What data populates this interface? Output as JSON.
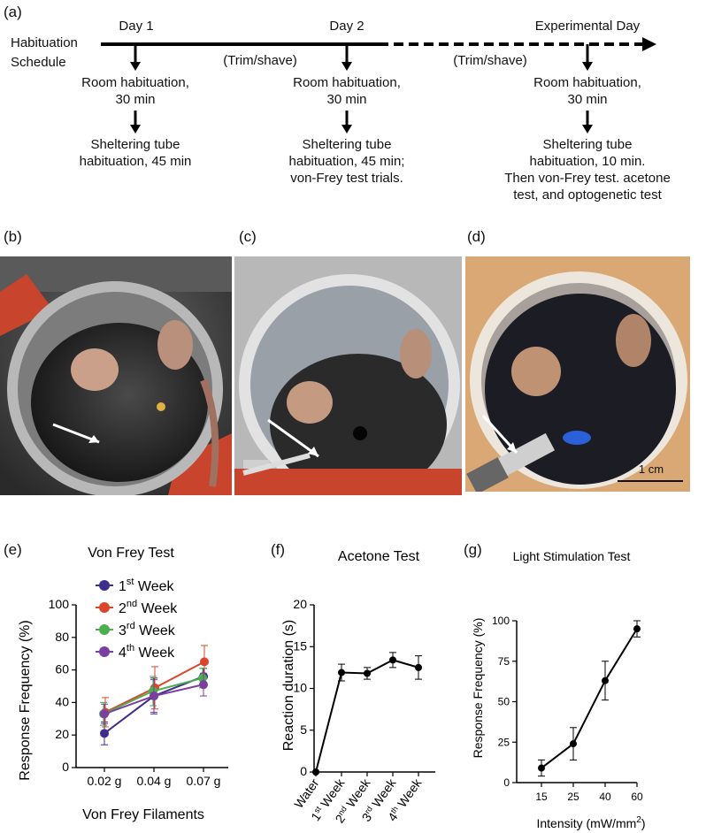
{
  "panels": {
    "a": "(a)",
    "b": "(b)",
    "c": "(c)",
    "d": "(d)",
    "e": "(e)",
    "f": "(f)",
    "g": "(g)"
  },
  "schedule": {
    "title_line1": "Habituation",
    "title_line2": "Schedule",
    "day1": {
      "label": "Day 1",
      "step1": [
        "Room habituation,",
        "30 min"
      ],
      "step2": [
        "Sheltering tube",
        "habituation, 45 min"
      ]
    },
    "trim1": "(Trim/shave)",
    "day2": {
      "label": "Day 2",
      "step1": [
        "Room habituation,",
        "30 min"
      ],
      "step2": [
        "Sheltering tube",
        "habituation, 45 min;",
        "von-Frey test trials."
      ]
    },
    "trim2": "(Trim/shave)",
    "exp": {
      "label": "Experimental Day",
      "step1": [
        "Room habituation,",
        "30 min"
      ],
      "step2": [
        "Sheltering tube",
        "habituation, 10 min.",
        "Then von-Frey test. acetone",
        "test, and optogenetic test"
      ]
    }
  },
  "photo_d_scale": "1 cm",
  "chart_data": [
    {
      "type": "line",
      "title": "Von Frey Test",
      "xlabel": "Von Frey Filaments",
      "ylabel": "Response Frequency (%)",
      "categories": [
        "0.02 g",
        "0.04 g",
        "0.07 g"
      ],
      "ylim": [
        0,
        100
      ],
      "yticks": [
        "0",
        "20",
        "40",
        "60",
        "80",
        "100"
      ],
      "series": [
        {
          "name": "1st Week",
          "base": "1",
          "sup": "st",
          "suffix": " Week",
          "color": "#3b2e8c",
          "values": [
            21,
            44,
            56
          ],
          "err": [
            7,
            11,
            5
          ]
        },
        {
          "name": "2nd Week",
          "base": "2",
          "sup": "nd",
          "suffix": " Week",
          "color": "#d9462b",
          "values": [
            34,
            49,
            65
          ],
          "err": [
            9,
            13,
            10
          ]
        },
        {
          "name": "3rd Week",
          "base": "3",
          "sup": "rd",
          "suffix": " Week",
          "color": "#4cae4f",
          "values": [
            33,
            47,
            55
          ],
          "err": [
            7,
            9,
            6
          ]
        },
        {
          "name": "4th Week",
          "base": "4",
          "sup": "th",
          "suffix": " Week",
          "color": "#7a3fa0",
          "values": [
            33,
            44,
            51
          ],
          "err": [
            6,
            10,
            7
          ]
        }
      ]
    },
    {
      "type": "line",
      "title": "Acetone Test",
      "xlabel": "",
      "ylabel": "Reaction duration (s)",
      "categories": [
        {
          "base": "Water",
          "sup": "",
          "suffix": ""
        },
        {
          "base": "1",
          "sup": "st",
          "suffix": " Week"
        },
        {
          "base": "2",
          "sup": "nd",
          "suffix": " Week"
        },
        {
          "base": "3",
          "sup": "rd",
          "suffix": " Week"
        },
        {
          "base": "4",
          "sup": "th",
          "suffix": " Week"
        }
      ],
      "ylim": [
        0,
        20
      ],
      "yticks": [
        "0",
        "5",
        "10",
        "15",
        "20"
      ],
      "series": [
        {
          "name": "Acetone",
          "color": "#000000",
          "values": [
            0,
            11.9,
            11.8,
            13.4,
            12.5
          ],
          "err": [
            0,
            1.0,
            0.7,
            0.9,
            1.4
          ]
        }
      ]
    },
    {
      "type": "line",
      "title": "Light Stimulation Test",
      "xlabel_main": "Intensity (mW/mm",
      "xlabel_sup": "2",
      "xlabel_end": ")",
      "ylabel": "Response Frequency (%)",
      "categories": [
        "15",
        "25",
        "40",
        "60"
      ],
      "ylim": [
        0,
        100
      ],
      "yticks": [
        "0",
        "25",
        "50",
        "75",
        "100"
      ],
      "series": [
        {
          "name": "Light",
          "color": "#000000",
          "values": [
            9,
            24,
            63,
            95
          ],
          "err": [
            5,
            10,
            12,
            5
          ]
        }
      ]
    }
  ]
}
